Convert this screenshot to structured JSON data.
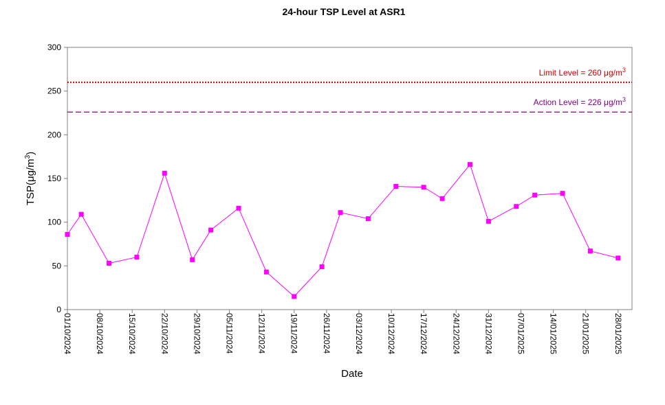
{
  "chart_data": {
    "type": "line",
    "title": "24-hour TSP Level at ASR1",
    "xlabel": "Date",
    "ylabel": [
      "TSP(μg/m",
      "3",
      ")"
    ],
    "x": [
      "2024-10-01",
      "2024-10-04",
      "2024-10-10",
      "2024-10-16",
      "2024-10-22",
      "2024-10-28",
      "2024-11-01",
      "2024-11-07",
      "2024-11-13",
      "2024-11-19",
      "2024-11-25",
      "2024-11-29",
      "2024-12-05",
      "2024-12-11",
      "2024-12-17",
      "2024-12-21",
      "2024-12-27",
      "2024-12-31",
      "2025-01-06",
      "2025-01-10",
      "2025-01-16",
      "2025-01-22",
      "2025-01-28"
    ],
    "series": [
      {
        "name": "TSP",
        "color": "#ff00ff",
        "values": [
          86,
          109,
          53,
          60,
          156,
          57,
          91,
          116,
          43,
          15,
          49,
          111,
          104,
          141,
          140,
          127,
          166,
          101,
          118,
          131,
          133,
          67,
          59
        ]
      }
    ],
    "xlim": [
      "2024-10-01",
      "2025-01-31"
    ],
    "xticks": [
      {
        "value": "2024-10-01",
        "label": "01/10/2024"
      },
      {
        "value": "2024-10-08",
        "label": "08/10/2024"
      },
      {
        "value": "2024-10-15",
        "label": "15/10/2024"
      },
      {
        "value": "2024-10-22",
        "label": "22/10/2024"
      },
      {
        "value": "2024-10-29",
        "label": "29/10/2024"
      },
      {
        "value": "2024-11-05",
        "label": "05/11/2024"
      },
      {
        "value": "2024-11-12",
        "label": "12/11/2024"
      },
      {
        "value": "2024-11-19",
        "label": "19/11/2024"
      },
      {
        "value": "2024-11-26",
        "label": "26/11/2024"
      },
      {
        "value": "2024-12-03",
        "label": "03/12/2024"
      },
      {
        "value": "2024-12-10",
        "label": "10/12/2024"
      },
      {
        "value": "2024-12-17",
        "label": "17/12/2024"
      },
      {
        "value": "2024-12-24",
        "label": "24/12/2024"
      },
      {
        "value": "2024-12-31",
        "label": "31/12/2024"
      },
      {
        "value": "2025-01-07",
        "label": "07/01/2025"
      },
      {
        "value": "2025-01-14",
        "label": "14/01/2025"
      },
      {
        "value": "2025-01-21",
        "label": "21/01/2025"
      },
      {
        "value": "2025-01-28",
        "label": "28/01/2025"
      }
    ],
    "ylim": [
      0,
      300
    ],
    "yticks": [
      0,
      50,
      100,
      150,
      200,
      250,
      300
    ],
    "reference_lines": [
      {
        "value": 260,
        "label": [
          "Limit Level  = 260 μg/m",
          "3"
        ],
        "color": "#cc0000",
        "style": "dotted"
      },
      {
        "value": 226,
        "label": [
          "Action Level  = 226 μg/m",
          "3"
        ],
        "color": "#800080",
        "style": "dashed"
      }
    ]
  }
}
